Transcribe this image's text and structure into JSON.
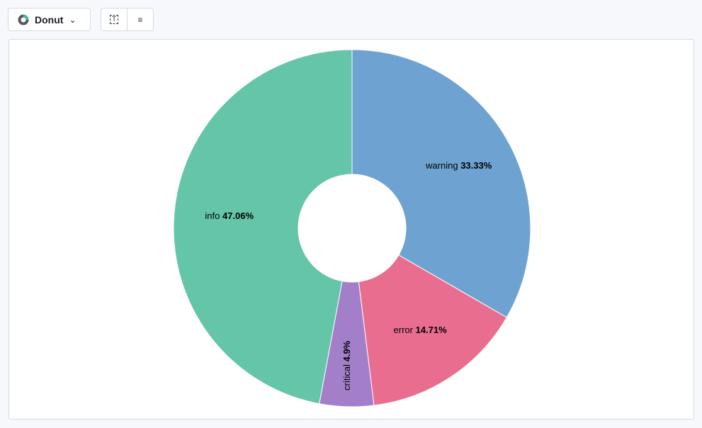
{
  "toolbar": {
    "chart_type_label": "Donut",
    "chart_type_icon": "donut-icon",
    "buttons": [
      "text-label-icon",
      "legend-icon"
    ]
  },
  "chart_data": {
    "type": "pie",
    "donut": true,
    "categories": [
      "warning",
      "error",
      "critical",
      "info"
    ],
    "values": [
      33.33,
      14.71,
      4.9,
      47.06
    ],
    "labels": [
      "33.33%",
      "14.71%",
      "4.9%",
      "47.06%"
    ],
    "colors": [
      "#6ea3d1",
      "#e96d8f",
      "#a37fca",
      "#65c5a8"
    ]
  }
}
